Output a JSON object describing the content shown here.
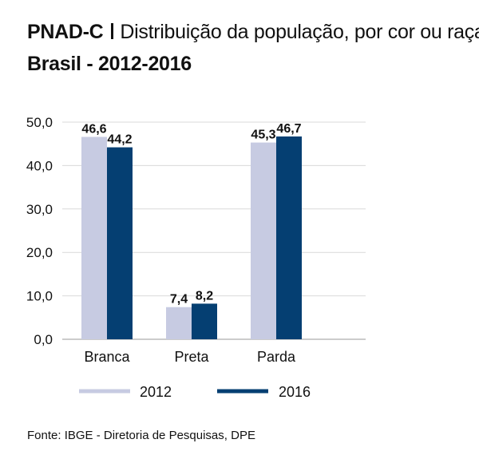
{
  "header": {
    "survey": "PNAD-C",
    "subtitle": "Distribuição da população, por cor ou raça",
    "region_period": "Brasil - 2012-2016"
  },
  "source": "Fonte: IBGE - Diretoria de Pesquisas, DPE",
  "chart_data": {
    "type": "bar",
    "categories": [
      "Branca",
      "Preta",
      "Parda"
    ],
    "series": [
      {
        "name": "2012",
        "values": [
          46.6,
          7.4,
          45.3
        ],
        "labels": [
          "46,6",
          "7,4",
          "45,3"
        ],
        "color": "#c7cbe2"
      },
      {
        "name": "2016",
        "values": [
          44.2,
          8.2,
          46.7
        ],
        "labels": [
          "44,2",
          "8,2",
          "46,7"
        ],
        "color": "#053f72"
      }
    ],
    "ylim": [
      0,
      50
    ],
    "yticks": [
      0,
      10,
      20,
      30,
      40,
      50
    ],
    "ytick_labels": [
      "0,0",
      "10,0",
      "20,0",
      "30,0",
      "40,0",
      "50,0"
    ],
    "grid": true,
    "legend_position": "bottom"
  }
}
